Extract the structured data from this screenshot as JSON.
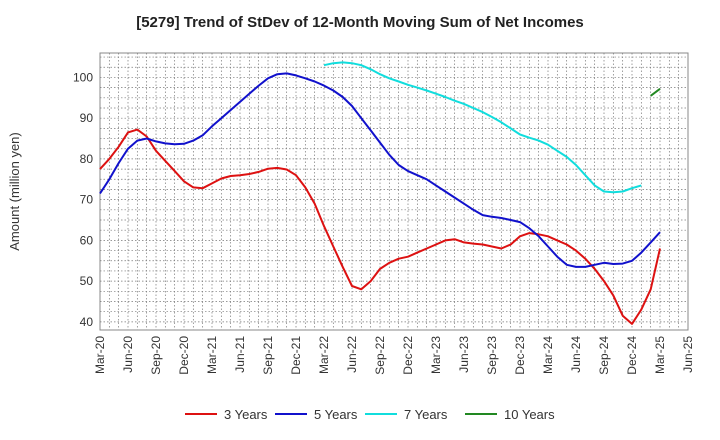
{
  "chart_data": {
    "type": "line",
    "title": "[5279]  Trend of StDev of 12-Month Moving Sum of Net Incomes",
    "xlabel": "",
    "ylabel": "Amount (million yen)",
    "ylim": [
      38,
      106
    ],
    "yticks": [
      40,
      50,
      60,
      70,
      80,
      90,
      100
    ],
    "xticks": [
      "Mar-20",
      "Jun-20",
      "Sep-20",
      "Dec-20",
      "Mar-21",
      "Jun-21",
      "Sep-21",
      "Dec-21",
      "Mar-22",
      "Jun-22",
      "Sep-22",
      "Dec-22",
      "Mar-23",
      "Jun-23",
      "Sep-23",
      "Dec-23",
      "Mar-24",
      "Jun-24",
      "Sep-24",
      "Dec-24",
      "Mar-25",
      "Jun-25"
    ],
    "x": [
      "2020-03",
      "2020-04",
      "2020-05",
      "2020-06",
      "2020-07",
      "2020-08",
      "2020-09",
      "2020-10",
      "2020-11",
      "2020-12",
      "2021-01",
      "2021-02",
      "2021-03",
      "2021-04",
      "2021-05",
      "2021-06",
      "2021-07",
      "2021-08",
      "2021-09",
      "2021-10",
      "2021-11",
      "2021-12",
      "2022-01",
      "2022-02",
      "2022-03",
      "2022-04",
      "2022-05",
      "2022-06",
      "2022-07",
      "2022-08",
      "2022-09",
      "2022-10",
      "2022-11",
      "2022-12",
      "2023-01",
      "2023-02",
      "2023-03",
      "2023-04",
      "2023-05",
      "2023-06",
      "2023-07",
      "2023-08",
      "2023-09",
      "2023-10",
      "2023-11",
      "2023-12",
      "2024-01",
      "2024-02",
      "2024-03",
      "2024-04",
      "2024-05",
      "2024-06",
      "2024-07",
      "2024-08",
      "2024-09",
      "2024-10",
      "2024-11",
      "2024-12",
      "2025-01",
      "2025-02",
      "2025-03"
    ],
    "grid": true,
    "legend_position": "bottom",
    "series": [
      {
        "name": "3 Years",
        "color": "#dd1111",
        "values": [
          77.5,
          80.0,
          83.0,
          86.5,
          87.2,
          85.5,
          82.0,
          79.5,
          77.0,
          74.5,
          73.0,
          72.8,
          74.0,
          75.2,
          75.8,
          76.0,
          76.3,
          76.8,
          77.6,
          77.8,
          77.4,
          76.0,
          73.0,
          69.0,
          63.5,
          58.5,
          53.5,
          48.8,
          48.0,
          50.0,
          53.0,
          54.5,
          55.5,
          56.0,
          57.0,
          58.0,
          59.0,
          60.0,
          60.3,
          59.5,
          59.2,
          59.0,
          58.5,
          58.0,
          59.0,
          61.0,
          61.8,
          61.5,
          61.0,
          60.0,
          59.0,
          57.5,
          55.5,
          53.0,
          50.0,
          46.5,
          41.5,
          39.5,
          43.0,
          48.0,
          58.0
        ]
      },
      {
        "name": "5 Years",
        "color": "#1111cc",
        "values": [
          71.5,
          75.0,
          79.0,
          82.5,
          84.5,
          85.0,
          84.3,
          83.8,
          83.6,
          83.7,
          84.5,
          85.8,
          88.0,
          90.0,
          92.0,
          94.0,
          96.0,
          98.0,
          99.8,
          100.8,
          101.0,
          100.5,
          99.8,
          99.0,
          98.0,
          96.8,
          95.2,
          93.0,
          90.0,
          87.0,
          84.0,
          81.0,
          78.5,
          77.0,
          76.0,
          75.0,
          73.5,
          72.0,
          70.5,
          69.0,
          67.5,
          66.2,
          65.8,
          65.5,
          65.0,
          64.5,
          63.0,
          61.0,
          58.5,
          56.0,
          54.0,
          53.5,
          53.5,
          54.0,
          54.5,
          54.2,
          54.3,
          55.0,
          57.0,
          59.5,
          62.0
        ]
      },
      {
        "name": "7 Years",
        "color": "#11dddd",
        "values": [
          null,
          null,
          null,
          null,
          null,
          null,
          null,
          null,
          null,
          null,
          null,
          null,
          null,
          null,
          null,
          null,
          null,
          null,
          null,
          null,
          null,
          null,
          null,
          null,
          103.0,
          103.5,
          103.7,
          103.5,
          103.0,
          102.0,
          100.8,
          99.8,
          99.0,
          98.2,
          97.5,
          96.8,
          96.0,
          95.2,
          94.3,
          93.5,
          92.5,
          91.5,
          90.3,
          89.0,
          87.5,
          86.0,
          85.2,
          84.5,
          83.5,
          82.0,
          80.5,
          78.5,
          76.0,
          73.5,
          72.0,
          71.8,
          72.0,
          72.8,
          73.5,
          null,
          null
        ]
      },
      {
        "name": "10 Years",
        "color": "#228822",
        "values": [
          null,
          null,
          null,
          null,
          null,
          null,
          null,
          null,
          null,
          null,
          null,
          null,
          null,
          null,
          null,
          null,
          null,
          null,
          null,
          null,
          null,
          null,
          null,
          null,
          null,
          null,
          null,
          null,
          null,
          null,
          null,
          null,
          null,
          null,
          null,
          null,
          null,
          null,
          null,
          null,
          null,
          null,
          null,
          null,
          null,
          null,
          null,
          null,
          null,
          null,
          null,
          null,
          null,
          null,
          null,
          null,
          null,
          null,
          null,
          95.5,
          97.2
        ]
      }
    ]
  }
}
